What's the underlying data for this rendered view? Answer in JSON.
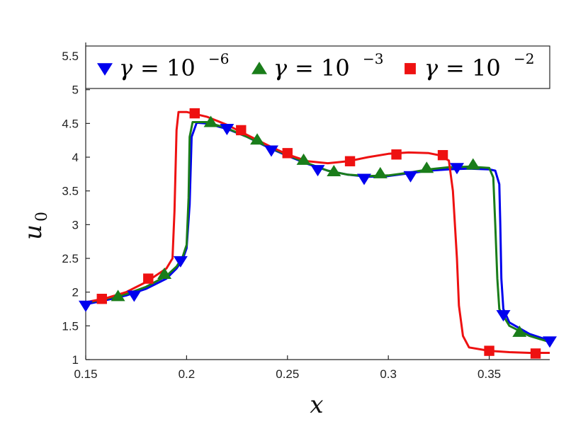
{
  "chart_data": {
    "type": "line",
    "title": "",
    "xlabel": "x",
    "ylabel_main": "u",
    "ylabel_sub": "0",
    "xlim": [
      0.15,
      0.38
    ],
    "ylim": [
      1,
      5.7
    ],
    "xticks": [
      0.15,
      0.2,
      0.25,
      0.3,
      0.35
    ],
    "xtick_labels": [
      "0.15",
      "0.2",
      "0.25",
      "0.3",
      "0.35"
    ],
    "yticks": [
      1,
      1.5,
      2,
      2.5,
      3,
      3.5,
      4,
      4.5,
      5,
      5.5
    ],
    "ytick_labels": [
      "1",
      "1.5",
      "2",
      "2.5",
      "3",
      "3.5",
      "4",
      "4.5",
      "5",
      "5.5"
    ],
    "grid": false,
    "legend_position": "top",
    "series": [
      {
        "name": "γ = 10^-6",
        "legend_gamma": "γ",
        "legend_eq": "= 10",
        "legend_exp": "−6",
        "color": "#0000ee",
        "marker": "triangle-down",
        "x": [
          0.15,
          0.16,
          0.17,
          0.18,
          0.19,
          0.195,
          0.198,
          0.2,
          0.2015,
          0.2025,
          0.205,
          0.21,
          0.22,
          0.23,
          0.24,
          0.25,
          0.26,
          0.27,
          0.28,
          0.29,
          0.3,
          0.31,
          0.32,
          0.33,
          0.34,
          0.35,
          0.353,
          0.355,
          0.3555,
          0.356,
          0.357,
          0.36,
          0.37,
          0.38
        ],
        "y": [
          1.82,
          1.88,
          1.95,
          2.05,
          2.2,
          2.35,
          2.48,
          2.65,
          3.3,
          4.3,
          4.51,
          4.5,
          4.42,
          4.3,
          4.15,
          4.02,
          3.9,
          3.8,
          3.74,
          3.71,
          3.72,
          3.76,
          3.8,
          3.82,
          3.83,
          3.82,
          3.8,
          3.6,
          3.0,
          2.2,
          1.75,
          1.55,
          1.38,
          1.28
        ],
        "markers_x": [
          0.15,
          0.174,
          0.197,
          0.22,
          0.242,
          0.265,
          0.288,
          0.311,
          0.334,
          0.357,
          0.38
        ],
        "markers_y": [
          1.8,
          1.95,
          2.46,
          4.42,
          4.1,
          3.81,
          3.68,
          3.72,
          3.84,
          1.66,
          1.27
        ]
      },
      {
        "name": "γ = 10^-3",
        "legend_gamma": "γ",
        "legend_eq": "= 10",
        "legend_exp": "−3",
        "color": "#1a7d1a",
        "marker": "triangle-up",
        "x": [
          0.15,
          0.16,
          0.17,
          0.18,
          0.19,
          0.195,
          0.198,
          0.2,
          0.201,
          0.2015,
          0.203,
          0.21,
          0.22,
          0.23,
          0.24,
          0.25,
          0.26,
          0.27,
          0.28,
          0.29,
          0.3,
          0.31,
          0.32,
          0.33,
          0.34,
          0.35,
          0.352,
          0.353,
          0.354,
          0.355,
          0.36,
          0.37,
          0.38
        ],
        "y": [
          1.84,
          1.9,
          1.97,
          2.08,
          2.24,
          2.38,
          2.52,
          2.7,
          3.4,
          4.3,
          4.52,
          4.52,
          4.43,
          4.3,
          4.16,
          4.03,
          3.91,
          3.8,
          3.74,
          3.72,
          3.73,
          3.77,
          3.82,
          3.85,
          3.86,
          3.84,
          3.7,
          3.0,
          2.2,
          1.75,
          1.5,
          1.35,
          1.26
        ],
        "markers_x": [
          0.166,
          0.189,
          0.212,
          0.235,
          0.258,
          0.273,
          0.296,
          0.319,
          0.342,
          0.365
        ],
        "markers_y": [
          1.94,
          2.27,
          4.52,
          4.26,
          3.96,
          3.79,
          3.76,
          3.84,
          3.89,
          1.41
        ]
      },
      {
        "name": "γ = 10^-2",
        "legend_gamma": "γ",
        "legend_eq": "= 10",
        "legend_exp": "−2",
        "color": "#ee1111",
        "marker": "square",
        "x": [
          0.15,
          0.16,
          0.17,
          0.18,
          0.19,
          0.193,
          0.194,
          0.195,
          0.196,
          0.2,
          0.21,
          0.22,
          0.23,
          0.24,
          0.25,
          0.26,
          0.27,
          0.28,
          0.29,
          0.3,
          0.31,
          0.32,
          0.325,
          0.33,
          0.332,
          0.334,
          0.335,
          0.337,
          0.34,
          0.35,
          0.36,
          0.37,
          0.38
        ],
        "y": [
          1.85,
          1.91,
          2.0,
          2.15,
          2.35,
          2.5,
          3.2,
          4.4,
          4.67,
          4.67,
          4.6,
          4.48,
          4.33,
          4.18,
          4.04,
          3.94,
          3.91,
          3.94,
          4.0,
          4.05,
          4.07,
          4.06,
          4.03,
          3.95,
          3.5,
          2.5,
          1.8,
          1.35,
          1.18,
          1.13,
          1.11,
          1.1,
          1.1
        ],
        "markers_x": [
          0.158,
          0.181,
          0.204,
          0.227,
          0.25,
          0.281,
          0.304,
          0.327,
          0.35,
          0.373
        ],
        "markers_y": [
          1.9,
          2.2,
          4.65,
          4.4,
          4.06,
          3.94,
          4.04,
          4.03,
          1.13,
          1.09
        ]
      }
    ]
  }
}
